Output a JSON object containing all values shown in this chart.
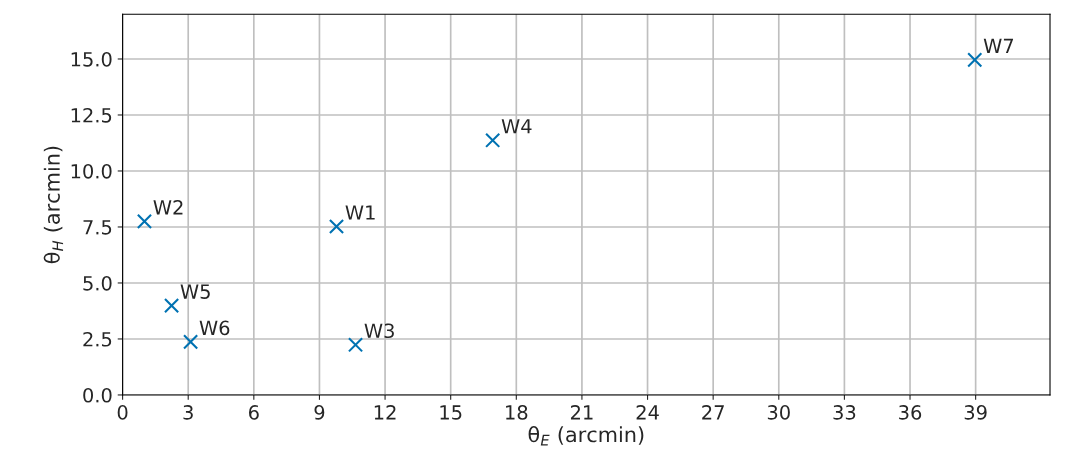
{
  "chart_data": {
    "type": "scatter",
    "xlabel": "θ$_{E}$ (arcmin)",
    "ylabel": "θ$_{H}$ (arcmin)",
    "x": [
      9.78,
      1.0,
      10.65,
      16.92,
      2.24,
      3.11,
      38.96
    ],
    "series": [
      {
        "color": "#0072b2",
        "values": [
          7.52,
          7.75,
          2.24,
          11.37,
          3.99,
          2.37,
          14.96
        ]
      }
    ],
    "annotations": [
      {
        "text": "W1",
        "x": 9.78,
        "y": 7.52
      },
      {
        "text": "W2",
        "x": 1.0,
        "y": 7.75
      },
      {
        "text": "W3",
        "x": 10.65,
        "y": 2.24
      },
      {
        "text": "W4",
        "x": 16.92,
        "y": 11.37
      },
      {
        "text": "W5",
        "x": 2.24,
        "y": 3.99
      },
      {
        "text": "W6",
        "x": 3.11,
        "y": 2.37
      },
      {
        "text": "W7",
        "x": 38.96,
        "y": 14.96
      }
    ],
    "xlim": [
      0,
      42.4
    ],
    "ylim": [
      0,
      17.0
    ],
    "xticks": [
      0,
      3,
      6,
      9,
      12,
      15,
      18,
      21,
      24,
      27,
      30,
      33,
      36,
      39
    ],
    "yticks": [
      {
        "value": 0,
        "label": "0.0"
      },
      {
        "value": 2.5,
        "label": "2.5"
      },
      {
        "value": 5,
        "label": "5.0"
      },
      {
        "value": 7.5,
        "label": "7.5"
      },
      {
        "value": 10,
        "label": "10.0"
      },
      {
        "value": 12.5,
        "label": "12.5"
      },
      {
        "value": 15,
        "label": "15.0"
      }
    ],
    "grid": true,
    "marker": "cross"
  }
}
